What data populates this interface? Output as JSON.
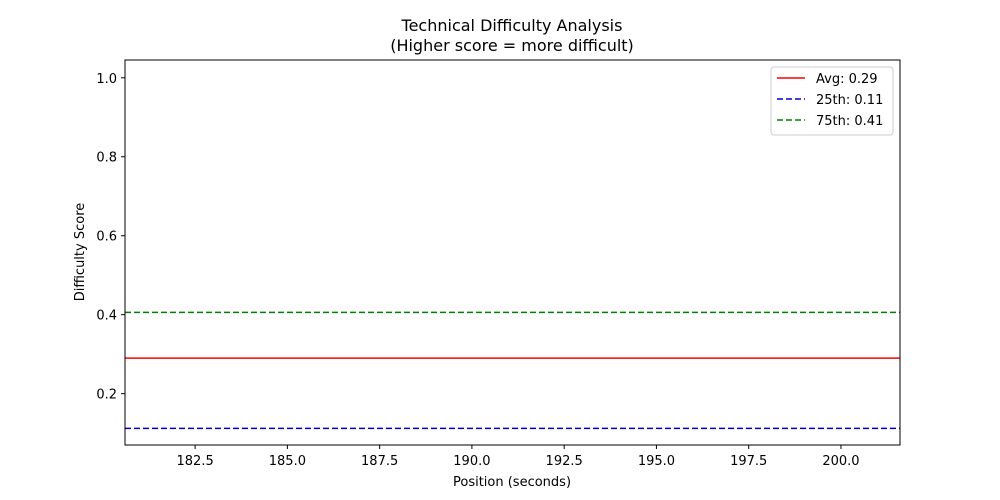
{
  "chart_data": {
    "type": "line",
    "title": "Technical Difficulty Analysis",
    "subtitle": "(Higher score = more difficult)",
    "xlabel": "Position (seconds)",
    "ylabel": "Difficulty Score",
    "xlim": [
      180.6,
      201.6
    ],
    "ylim": [
      0.07,
      1.045
    ],
    "x_ticks": [
      182.5,
      185.0,
      187.5,
      190.0,
      192.5,
      195.0,
      197.5,
      200.0
    ],
    "x_tick_labels": [
      "182.5",
      "185.0",
      "187.5",
      "190.0",
      "192.5",
      "195.0",
      "197.5",
      "200.0"
    ],
    "y_ticks": [
      0.2,
      0.4,
      0.6,
      0.8,
      1.0
    ],
    "y_tick_labels": [
      "0.2",
      "0.4",
      "0.6",
      "0.8",
      "1.0"
    ],
    "grid": false,
    "legend_position": "top-right",
    "series": [
      {
        "name": "Avg: 0.29",
        "value": 0.29,
        "color": "#ff0000",
        "style": "solid"
      },
      {
        "name": "25th: 0.11",
        "value": 0.112,
        "color": "#0000cc",
        "style": "dashed"
      },
      {
        "name": "75th: 0.41",
        "value": 0.406,
        "color": "#008000",
        "style": "dashed"
      }
    ]
  }
}
